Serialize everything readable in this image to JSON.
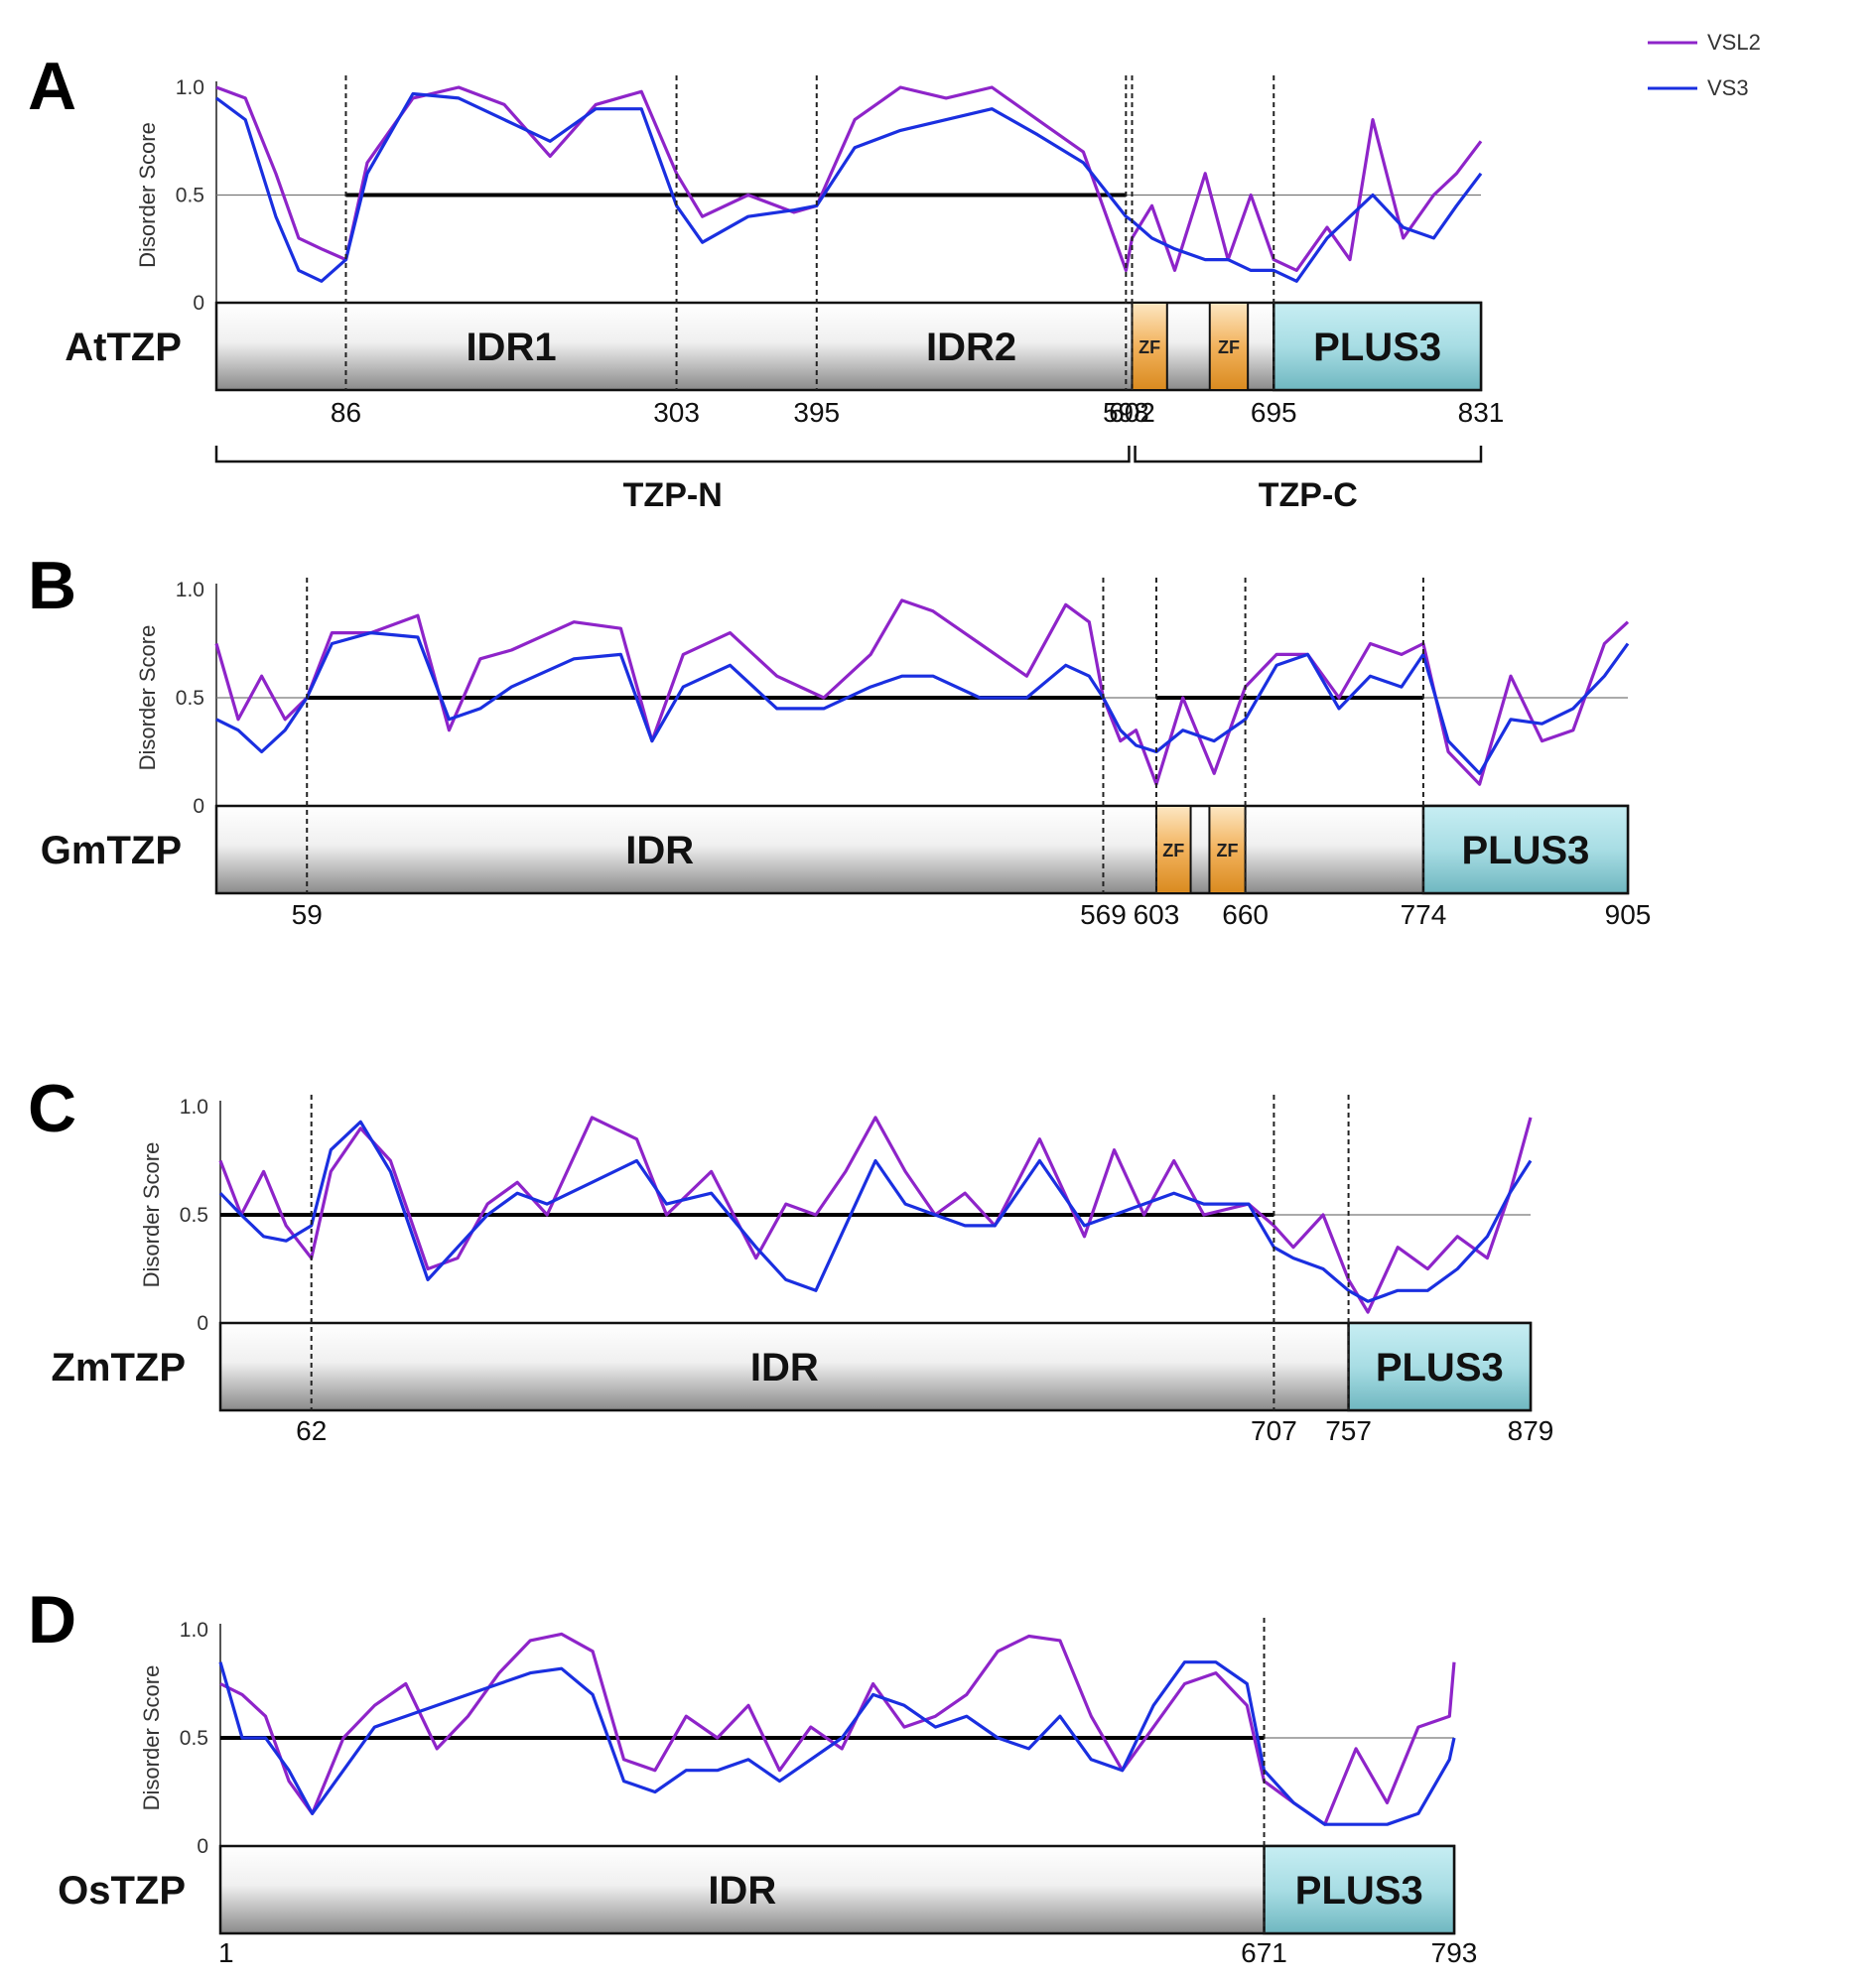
{
  "legend": [
    {
      "name": "VSL2",
      "color": "#8e24c9"
    },
    {
      "name": "VS3",
      "color": "#1a2fe0"
    }
  ],
  "threshold_color": "#000000",
  "chart_data": [
    {
      "type": "line",
      "panel": "A",
      "protein": "AtTZP",
      "ylabel": "Disorder Score",
      "yticks": [
        "0",
        "0.5",
        "1.0"
      ],
      "ylim": [
        0,
        1
      ],
      "xlim": [
        1,
        831
      ],
      "threshold": 0.5,
      "series": [
        {
          "name": "VSL2",
          "x": [
            1,
            20,
            40,
            55,
            70,
            86,
            100,
            130,
            160,
            190,
            220,
            250,
            280,
            303,
            320,
            350,
            380,
            395,
            420,
            450,
            480,
            510,
            540,
            570,
            598,
            602,
            615,
            630,
            650,
            665,
            680,
            695,
            710,
            730,
            745,
            760,
            780,
            800,
            815,
            831
          ],
          "values": [
            1.0,
            0.95,
            0.6,
            0.3,
            0.25,
            0.2,
            0.65,
            0.95,
            1.0,
            0.92,
            0.68,
            0.92,
            0.98,
            0.6,
            0.4,
            0.5,
            0.42,
            0.45,
            0.85,
            1.0,
            0.95,
            1.0,
            0.85,
            0.7,
            0.15,
            0.3,
            0.45,
            0.15,
            0.6,
            0.2,
            0.5,
            0.2,
            0.15,
            0.35,
            0.2,
            0.85,
            0.3,
            0.5,
            0.6,
            0.75
          ]
        },
        {
          "name": "VS3",
          "x": [
            1,
            20,
            40,
            55,
            70,
            86,
            100,
            130,
            160,
            190,
            220,
            250,
            280,
            303,
            320,
            350,
            380,
            395,
            420,
            450,
            480,
            510,
            540,
            570,
            598,
            602,
            615,
            630,
            650,
            665,
            680,
            695,
            710,
            730,
            745,
            760,
            780,
            800,
            815,
            831
          ],
          "values": [
            0.95,
            0.85,
            0.4,
            0.15,
            0.1,
            0.2,
            0.6,
            0.97,
            0.95,
            0.85,
            0.75,
            0.9,
            0.9,
            0.45,
            0.28,
            0.4,
            0.43,
            0.45,
            0.72,
            0.8,
            0.85,
            0.9,
            0.78,
            0.65,
            0.4,
            0.38,
            0.3,
            0.25,
            0.2,
            0.2,
            0.15,
            0.15,
            0.1,
            0.3,
            0.4,
            0.5,
            0.35,
            0.3,
            0.45,
            0.6
          ]
        }
      ],
      "dashed_positions": [
        86,
        303,
        395,
        598,
        602,
        695
      ],
      "threshold_segments": [
        [
          86,
          598
        ]
      ],
      "domains": [
        {
          "label": "IDR1",
          "start": 86,
          "end": 303,
          "style": "plain"
        },
        {
          "label": "IDR2",
          "start": 395,
          "end": 598,
          "style": "plain"
        },
        {
          "label": "ZF",
          "start": 602,
          "end": 625,
          "style": "zf"
        },
        {
          "label": "ZF",
          "start": 653,
          "end": 678,
          "style": "zf"
        },
        {
          "label": "PLUS3",
          "start": 695,
          "end": 831,
          "style": "plus3"
        }
      ],
      "positions": [
        "86",
        "303",
        "395",
        "598",
        "602",
        "695",
        "831"
      ],
      "regions": [
        {
          "label": "TZP-N",
          "start": 1,
          "end": 600
        },
        {
          "label": "TZP-C",
          "start": 604,
          "end": 831
        }
      ]
    },
    {
      "type": "line",
      "panel": "B",
      "protein": "GmTZP",
      "ylabel": "Disorder Score",
      "yticks": [
        "0",
        "0.5",
        "1.0"
      ],
      "ylim": [
        0,
        1
      ],
      "xlim": [
        1,
        905
      ],
      "threshold": 0.5,
      "series": [
        {
          "name": "VSL2",
          "x": [
            1,
            15,
            30,
            45,
            59,
            75,
            100,
            130,
            150,
            170,
            190,
            230,
            260,
            280,
            300,
            330,
            360,
            390,
            420,
            440,
            460,
            490,
            520,
            545,
            560,
            569,
            580,
            590,
            603,
            620,
            640,
            660,
            680,
            700,
            720,
            740,
            760,
            774,
            790,
            810,
            830,
            850,
            870,
            890,
            905
          ],
          "values": [
            0.75,
            0.4,
            0.6,
            0.4,
            0.5,
            0.8,
            0.8,
            0.88,
            0.35,
            0.68,
            0.72,
            0.85,
            0.82,
            0.3,
            0.7,
            0.8,
            0.6,
            0.5,
            0.7,
            0.95,
            0.9,
            0.75,
            0.6,
            0.93,
            0.85,
            0.5,
            0.3,
            0.35,
            0.1,
            0.5,
            0.15,
            0.55,
            0.7,
            0.7,
            0.5,
            0.75,
            0.7,
            0.75,
            0.25,
            0.1,
            0.6,
            0.3,
            0.35,
            0.75,
            0.85
          ]
        },
        {
          "name": "VS3",
          "x": [
            1,
            15,
            30,
            45,
            59,
            75,
            100,
            130,
            150,
            170,
            190,
            230,
            260,
            280,
            300,
            330,
            360,
            390,
            420,
            440,
            460,
            490,
            520,
            545,
            560,
            569,
            580,
            590,
            603,
            620,
            640,
            660,
            680,
            700,
            720,
            740,
            760,
            774,
            790,
            810,
            830,
            850,
            870,
            890,
            905
          ],
          "values": [
            0.4,
            0.35,
            0.25,
            0.35,
            0.5,
            0.75,
            0.8,
            0.78,
            0.4,
            0.45,
            0.55,
            0.68,
            0.7,
            0.3,
            0.55,
            0.65,
            0.45,
            0.45,
            0.55,
            0.6,
            0.6,
            0.5,
            0.5,
            0.65,
            0.6,
            0.5,
            0.35,
            0.28,
            0.25,
            0.35,
            0.3,
            0.4,
            0.65,
            0.7,
            0.45,
            0.6,
            0.55,
            0.7,
            0.3,
            0.15,
            0.4,
            0.38,
            0.45,
            0.6,
            0.75
          ]
        }
      ],
      "dashed_positions": [
        59,
        569,
        603,
        660,
        774
      ],
      "threshold_segments": [
        [
          59,
          569
        ],
        [
          603,
          774
        ]
      ],
      "domains": [
        {
          "label": "IDR",
          "start": 1,
          "end": 569,
          "style": "plain"
        },
        {
          "label": "ZF",
          "start": 603,
          "end": 625,
          "style": "zf"
        },
        {
          "label": "ZF",
          "start": 637,
          "end": 660,
          "style": "zf"
        },
        {
          "label": "PLUS3",
          "start": 774,
          "end": 905,
          "style": "plus3"
        }
      ],
      "positions": [
        "59",
        "569",
        "603",
        "660",
        "774",
        "905"
      ],
      "regions": []
    },
    {
      "type": "line",
      "panel": "C",
      "protein": "ZmTZP",
      "ylabel": "Disorder Score",
      "yticks": [
        "0",
        "0.5",
        "1.0"
      ],
      "ylim": [
        0,
        1
      ],
      "xlim": [
        1,
        879
      ],
      "threshold": 0.5,
      "series": [
        {
          "name": "VSL2",
          "x": [
            1,
            15,
            30,
            45,
            62,
            75,
            95,
            115,
            140,
            160,
            180,
            200,
            220,
            250,
            280,
            300,
            330,
            360,
            380,
            400,
            420,
            440,
            460,
            480,
            500,
            520,
            550,
            580,
            600,
            620,
            640,
            660,
            690,
            707,
            720,
            740,
            757,
            770,
            790,
            810,
            830,
            850,
            865,
            879
          ],
          "values": [
            0.75,
            0.5,
            0.7,
            0.45,
            0.3,
            0.7,
            0.9,
            0.75,
            0.25,
            0.3,
            0.55,
            0.65,
            0.5,
            0.95,
            0.85,
            0.5,
            0.7,
            0.3,
            0.55,
            0.5,
            0.7,
            0.95,
            0.7,
            0.5,
            0.6,
            0.45,
            0.85,
            0.4,
            0.8,
            0.5,
            0.75,
            0.5,
            0.55,
            0.45,
            0.35,
            0.5,
            0.2,
            0.05,
            0.35,
            0.25,
            0.4,
            0.3,
            0.6,
            0.95
          ]
        },
        {
          "name": "VS3",
          "x": [
            1,
            15,
            30,
            45,
            62,
            75,
            95,
            115,
            140,
            160,
            180,
            200,
            220,
            250,
            280,
            300,
            330,
            360,
            380,
            400,
            420,
            440,
            460,
            480,
            500,
            520,
            550,
            580,
            600,
            620,
            640,
            660,
            690,
            707,
            720,
            740,
            757,
            770,
            790,
            810,
            830,
            850,
            865,
            879
          ],
          "values": [
            0.6,
            0.5,
            0.4,
            0.38,
            0.45,
            0.8,
            0.93,
            0.7,
            0.2,
            0.35,
            0.5,
            0.6,
            0.55,
            0.65,
            0.75,
            0.55,
            0.6,
            0.35,
            0.2,
            0.15,
            0.45,
            0.75,
            0.55,
            0.5,
            0.45,
            0.45,
            0.75,
            0.45,
            0.5,
            0.55,
            0.6,
            0.55,
            0.55,
            0.35,
            0.3,
            0.25,
            0.15,
            0.1,
            0.15,
            0.15,
            0.25,
            0.4,
            0.6,
            0.75
          ]
        }
      ],
      "dashed_positions": [
        62,
        707,
        757
      ],
      "threshold_segments": [
        [
          1,
          707
        ]
      ],
      "domains": [
        {
          "label": "IDR",
          "start": 1,
          "end": 757,
          "style": "plain"
        },
        {
          "label": "PLUS3",
          "start": 757,
          "end": 879,
          "style": "plus3"
        }
      ],
      "positions": [
        "62",
        "707",
        "757",
        "879"
      ],
      "regions": []
    },
    {
      "type": "line",
      "panel": "D",
      "protein": "OsTZP",
      "ylabel": "Disorder Score",
      "yticks": [
        "0",
        "0.5",
        "1.0"
      ],
      "ylim": [
        0,
        1
      ],
      "xlim": [
        1,
        793
      ],
      "threshold": 0.5,
      "series": [
        {
          "name": "VSL2",
          "x": [
            1,
            15,
            30,
            45,
            60,
            80,
            100,
            120,
            140,
            160,
            180,
            200,
            220,
            240,
            260,
            280,
            300,
            320,
            340,
            360,
            380,
            400,
            420,
            440,
            460,
            480,
            500,
            520,
            540,
            560,
            580,
            600,
            620,
            640,
            660,
            671,
            690,
            710,
            730,
            750,
            770,
            790,
            793
          ],
          "values": [
            0.75,
            0.7,
            0.6,
            0.3,
            0.15,
            0.5,
            0.65,
            0.75,
            0.45,
            0.6,
            0.8,
            0.95,
            0.98,
            0.9,
            0.4,
            0.35,
            0.6,
            0.5,
            0.65,
            0.35,
            0.55,
            0.45,
            0.75,
            0.55,
            0.6,
            0.7,
            0.9,
            0.97,
            0.95,
            0.6,
            0.35,
            0.55,
            0.75,
            0.8,
            0.65,
            0.3,
            0.2,
            0.1,
            0.45,
            0.2,
            0.55,
            0.6,
            0.85
          ]
        },
        {
          "name": "VS3",
          "x": [
            1,
            15,
            30,
            45,
            60,
            80,
            100,
            120,
            140,
            160,
            180,
            200,
            220,
            240,
            260,
            280,
            300,
            320,
            340,
            360,
            380,
            400,
            420,
            440,
            460,
            480,
            500,
            520,
            540,
            560,
            580,
            600,
            620,
            640,
            660,
            671,
            690,
            710,
            730,
            750,
            770,
            790,
            793
          ],
          "values": [
            0.85,
            0.5,
            0.5,
            0.35,
            0.15,
            0.35,
            0.55,
            0.6,
            0.65,
            0.7,
            0.75,
            0.8,
            0.82,
            0.7,
            0.3,
            0.25,
            0.35,
            0.35,
            0.4,
            0.3,
            0.4,
            0.5,
            0.7,
            0.65,
            0.55,
            0.6,
            0.5,
            0.45,
            0.6,
            0.4,
            0.35,
            0.65,
            0.85,
            0.85,
            0.75,
            0.35,
            0.2,
            0.1,
            0.1,
            0.1,
            0.15,
            0.4,
            0.5
          ]
        }
      ],
      "dashed_positions": [
        671
      ],
      "threshold_segments": [
        [
          1,
          671
        ]
      ],
      "domains": [
        {
          "label": "IDR",
          "start": 1,
          "end": 671,
          "style": "plain"
        },
        {
          "label": "PLUS3",
          "start": 671,
          "end": 793,
          "style": "plus3"
        }
      ],
      "positions": [
        "1",
        "671",
        "793"
      ],
      "regions": []
    }
  ]
}
